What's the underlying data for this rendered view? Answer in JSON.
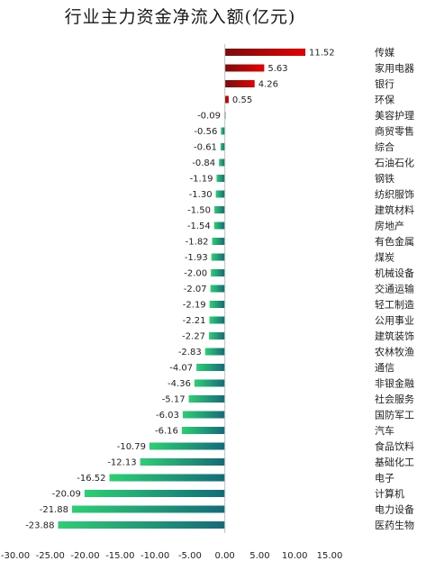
{
  "chart_data": {
    "type": "bar",
    "orientation": "horizontal",
    "title": "行业主力资金净流入额(亿元)",
    "xlim": [
      -30,
      15
    ],
    "xticks": [
      "-30.00",
      "-25.00",
      "-20.00",
      "-15.00",
      "-10.00",
      "-5.00",
      "0.00",
      "5.00",
      "10.00",
      "15.00"
    ],
    "tick_values": [
      -30,
      -25,
      -20,
      -15,
      -10,
      -5,
      0,
      5,
      10,
      15
    ],
    "positive_color": "#c00000",
    "negative_color": "#1fbf73",
    "categories": [
      "传媒",
      "家用电器",
      "银行",
      "环保",
      "美容护理",
      "商贸零售",
      "综合",
      "石油石化",
      "钢铁",
      "纺织服饰",
      "建筑材料",
      "房地产",
      "有色金属",
      "煤炭",
      "机械设备",
      "交通运输",
      "轻工制造",
      "公用事业",
      "建筑装饰",
      "农林牧渔",
      "通信",
      "非银金融",
      "社会服务",
      "国防军工",
      "汽车",
      "食品饮料",
      "基础化工",
      "电子",
      "计算机",
      "电力设备",
      "医药生物"
    ],
    "values": [
      11.52,
      5.63,
      4.26,
      0.55,
      -0.09,
      -0.56,
      -0.61,
      -0.84,
      -1.19,
      -1.3,
      -1.5,
      -1.54,
      -1.82,
      -1.93,
      -2.0,
      -2.07,
      -2.19,
      -2.21,
      -2.27,
      -2.83,
      -4.07,
      -4.36,
      -5.17,
      -6.03,
      -6.16,
      -10.79,
      -12.13,
      -16.52,
      -20.09,
      -21.88,
      -23.88
    ],
    "value_labels": [
      "11.52",
      "5.63",
      "4.26",
      "0.55",
      "-0.09",
      "-0.56",
      "-0.61",
      "-0.84",
      "-1.19",
      "-1.30",
      "-1.50",
      "-1.54",
      "-1.82",
      "-1.93",
      "-2.00",
      "-2.07",
      "-2.19",
      "-2.21",
      "-2.27",
      "-2.83",
      "-4.07",
      "-4.36",
      "-5.17",
      "-6.03",
      "-6.16",
      "-10.79",
      "-12.13",
      "-16.52",
      "-20.09",
      "-21.88",
      "-23.88"
    ]
  }
}
